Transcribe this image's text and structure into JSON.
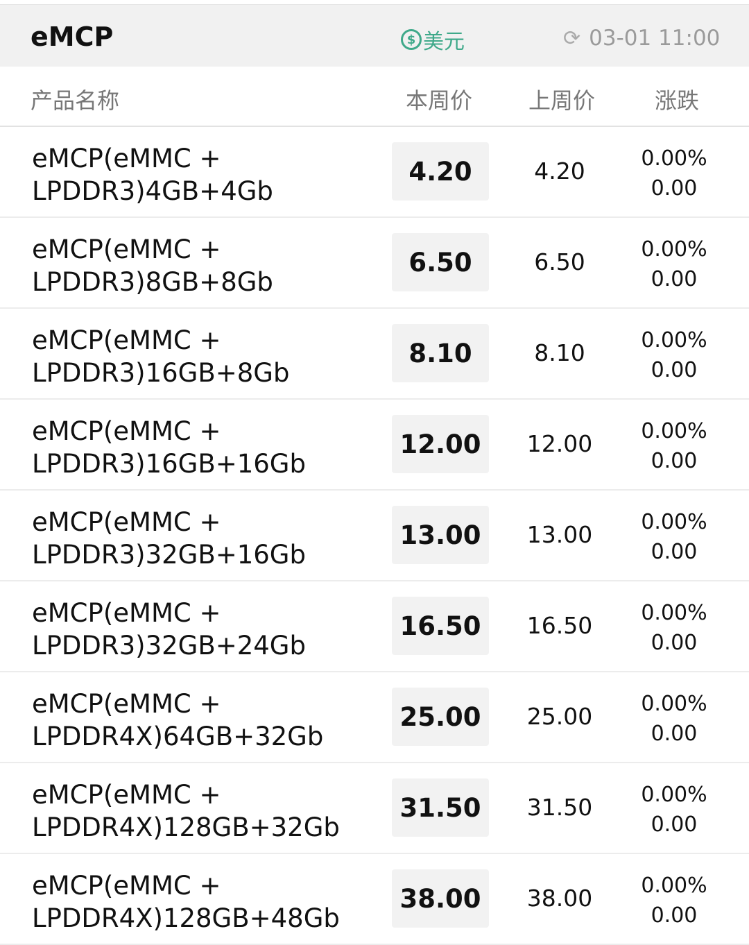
{
  "header": {
    "title": "eMCP",
    "currency_icon": "dollar-circle-icon",
    "currency": "美元",
    "refresh_icon": "refresh-icon",
    "updated": "03-01 11:00",
    "accent": "#3fa98a"
  },
  "columns": {
    "name": "产品名称",
    "this_week": "本周价",
    "last_week": "上周价",
    "change": "涨跌"
  },
  "rows": [
    {
      "l1": "eMCP(eMMC +",
      "l2": "LPDDR3)4GB+4Gb",
      "cur": "4.20",
      "last": "4.20",
      "pct": "0.00%",
      "diff": "0.00"
    },
    {
      "l1": "eMCP(eMMC +",
      "l2": "LPDDR3)8GB+8Gb",
      "cur": "6.50",
      "last": "6.50",
      "pct": "0.00%",
      "diff": "0.00"
    },
    {
      "l1": "eMCP(eMMC +",
      "l2": "LPDDR3)16GB+8Gb",
      "cur": "8.10",
      "last": "8.10",
      "pct": "0.00%",
      "diff": "0.00"
    },
    {
      "l1": "eMCP(eMMC +",
      "l2": "LPDDR3)16GB+16Gb",
      "cur": "12.00",
      "last": "12.00",
      "pct": "0.00%",
      "diff": "0.00"
    },
    {
      "l1": "eMCP(eMMC +",
      "l2": "LPDDR3)32GB+16Gb",
      "cur": "13.00",
      "last": "13.00",
      "pct": "0.00%",
      "diff": "0.00"
    },
    {
      "l1": "eMCP(eMMC +",
      "l2": "LPDDR3)32GB+24Gb",
      "cur": "16.50",
      "last": "16.50",
      "pct": "0.00%",
      "diff": "0.00"
    },
    {
      "l1": "eMCP(eMMC +",
      "l2": "LPDDR4X)64GB+32Gb",
      "cur": "25.00",
      "last": "25.00",
      "pct": "0.00%",
      "diff": "0.00"
    },
    {
      "l1": "eMCP(eMMC +",
      "l2": "LPDDR4X)128GB+32Gb",
      "cur": "31.50",
      "last": "31.50",
      "pct": "0.00%",
      "diff": "0.00"
    },
    {
      "l1": "eMCP(eMMC +",
      "l2": "LPDDR4X)128GB+48Gb",
      "cur": "38.00",
      "last": "38.00",
      "pct": "0.00%",
      "diff": "0.00"
    }
  ]
}
